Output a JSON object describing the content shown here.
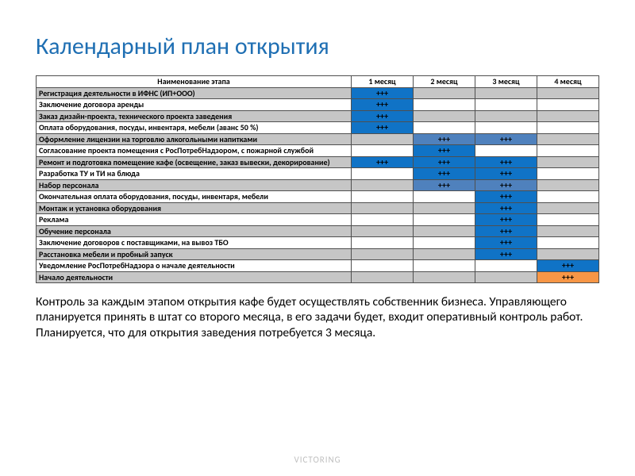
{
  "title": {
    "text": "Календарный план открытия",
    "color": "#1f6fb3"
  },
  "footer": "VICTORING",
  "caption": "Контроль за каждым этапом открытия  кафе будет осуществлять собственник бизнеса. Управляющего планируется принять в штат со второго месяца, в его задачи будет, входит оперативный контроль работ. Планируется, что для открытия заведения потребуется 3 месяца.",
  "table": {
    "columns": [
      "Наименование этапа",
      "1 месяц",
      "2 месяц",
      "3 месяц",
      "4 месяц"
    ],
    "mark": "+++",
    "colors": {
      "header_bg": "#ffffff",
      "gray_bg": "#c6c6c6",
      "white_bg": "#ffffff",
      "blue_fill": "#1073c6",
      "lblue_fill": "#4f81bd",
      "orange_fill": "#f79646",
      "border": "#4f4f4f"
    },
    "rows": [
      {
        "name": "Регистрация деятельности в ИФНС (ИП+ООО)",
        "stripe": "gray",
        "cells": [
          "blue",
          "",
          "",
          ""
        ]
      },
      {
        "name": "Заключение договора аренды",
        "stripe": "white",
        "cells": [
          "blue",
          "",
          "",
          ""
        ]
      },
      {
        "name": "Заказ дизайн-проекта, технического проекта заведения",
        "stripe": "gray",
        "cells": [
          "blue",
          "",
          "",
          ""
        ]
      },
      {
        "name": "Оплата оборудования, посуды, инвентаря, мебели (аванс 50 %)",
        "stripe": "white",
        "cells": [
          "blue",
          "",
          "",
          ""
        ]
      },
      {
        "name": "Оформление лицензии на торговлю алкогольными напитками",
        "stripe": "gray",
        "cells": [
          "",
          "lblue",
          "lblue",
          ""
        ]
      },
      {
        "name": "Согласование проекта помещения с РосПотребНадзором, с пожарной службой",
        "stripe": "white",
        "cells": [
          "",
          "blue",
          "",
          ""
        ]
      },
      {
        "name": "Ремонт и подготовка помещение кафе (освещение, заказ вывески, декорирование)",
        "stripe": "gray",
        "cells": [
          "blue",
          "blue",
          "blue",
          ""
        ]
      },
      {
        "name": "Разработка ТУ и ТИ на блюда",
        "stripe": "white",
        "cells": [
          "",
          "blue",
          "blue",
          ""
        ]
      },
      {
        "name": "Набор персонала",
        "stripe": "gray",
        "cells": [
          "",
          "lblue",
          "lblue",
          ""
        ]
      },
      {
        "name": "Окончательная оплата оборудования, посуды, инвентаря, мебели",
        "stripe": "white",
        "cells": [
          "",
          "",
          "blue",
          ""
        ]
      },
      {
        "name": "Монтаж и установка оборудования",
        "stripe": "gray",
        "cells": [
          "",
          "",
          "blue",
          ""
        ]
      },
      {
        "name": "Реклама",
        "stripe": "white",
        "cells": [
          "",
          "",
          "blue",
          ""
        ]
      },
      {
        "name": "Обучение персонала",
        "stripe": "gray",
        "cells": [
          "",
          "",
          "blue",
          ""
        ]
      },
      {
        "name": "Заключение договоров с поставщиками, на вывоз ТБО",
        "stripe": "white",
        "cells": [
          "",
          "",
          "blue",
          ""
        ]
      },
      {
        "name": "Расстановка мебели и пробный запуск",
        "stripe": "gray",
        "cells": [
          "",
          "",
          "blue",
          ""
        ]
      },
      {
        "name": "Уведомление РосПотребНадзора о начале деятельности",
        "stripe": "white",
        "cells": [
          "",
          "",
          "",
          "blue"
        ]
      },
      {
        "name": "Начало деятельности",
        "stripe": "gray",
        "cells": [
          "",
          "",
          "",
          "orange"
        ]
      }
    ]
  }
}
